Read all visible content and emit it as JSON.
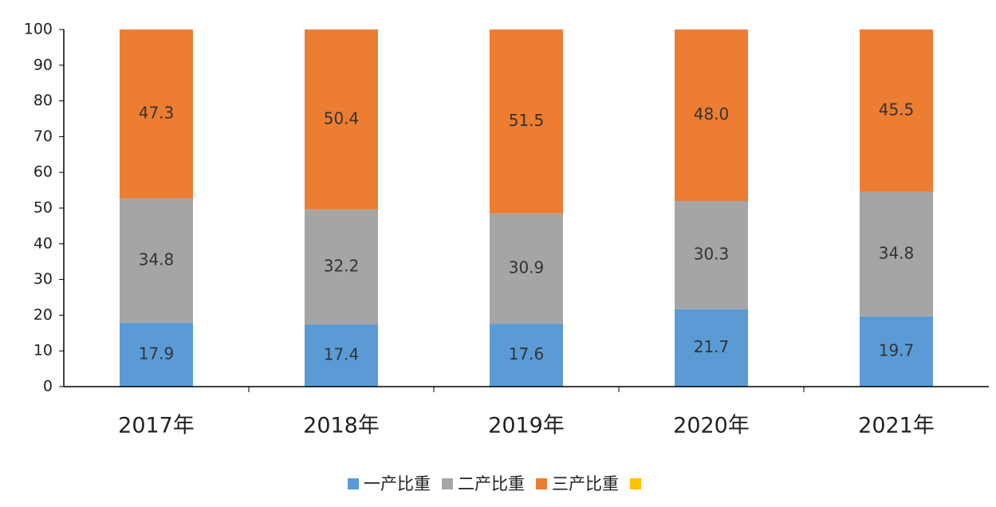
{
  "chart_data": {
    "type": "stacked_bar",
    "categories": [
      "2017年",
      "2018年",
      "2019年",
      "2020年",
      "2021年"
    ],
    "series": [
      {
        "name": "一产比重",
        "color": "#5b9bd5",
        "values": [
          17.9,
          17.4,
          17.6,
          21.7,
          19.7
        ],
        "value_labels": [
          "17.9",
          "17.4",
          "17.6",
          "21.7",
          "19.7"
        ]
      },
      {
        "name": "二产比重",
        "color": "#a5a5a5",
        "values": [
          34.8,
          32.2,
          30.9,
          30.3,
          34.8
        ],
        "value_labels": [
          "34.8",
          "32.2",
          "30.9",
          "30.3",
          "34.8"
        ]
      },
      {
        "name": "三产比重",
        "color": "#ed7d31",
        "values": [
          47.3,
          50.4,
          51.5,
          48.0,
          45.5
        ],
        "value_labels": [
          "47.3",
          "50.4",
          "51.5",
          "48.0",
          "45.5"
        ]
      },
      {
        "name": null,
        "color": "#ffc000",
        "values": [
          null,
          null,
          null,
          null,
          null
        ]
      }
    ],
    "ylim": [
      0,
      100
    ],
    "yticks": [
      0,
      10,
      20,
      30,
      40,
      50,
      60,
      70,
      80,
      90,
      100
    ],
    "grid": false,
    "legend": "bottom"
  }
}
